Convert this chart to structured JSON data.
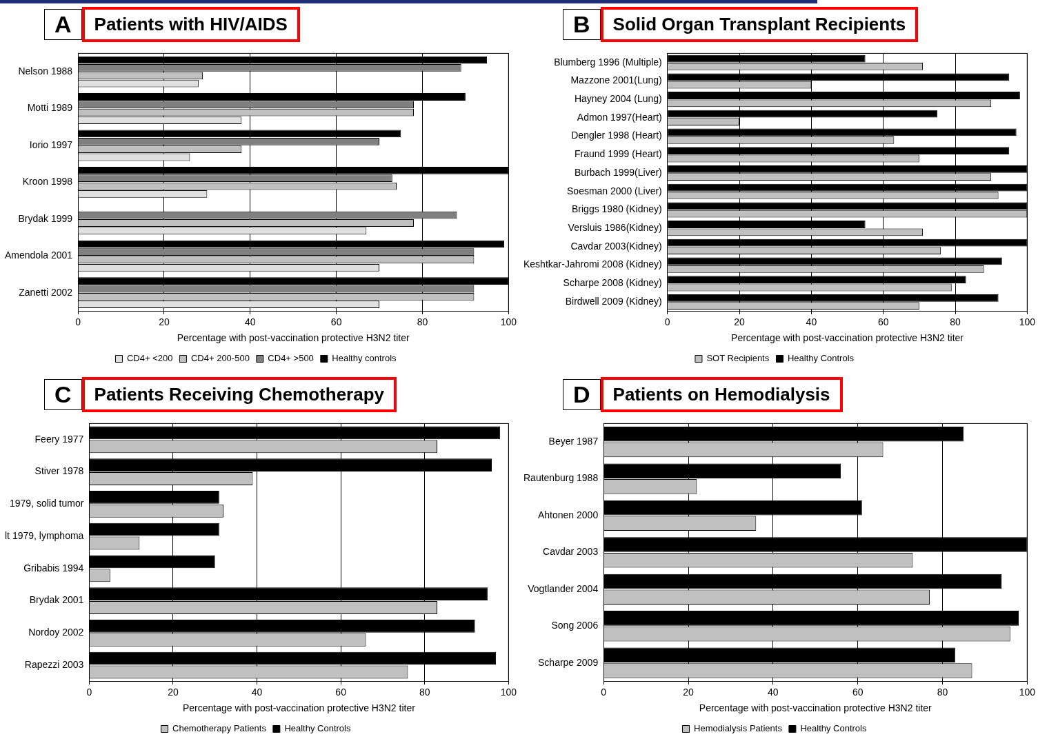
{
  "chart_data": [
    {
      "type": "bar",
      "orientation": "horizontal",
      "title": "Patients with HIV/AIDS",
      "annotations": [
        "A"
      ],
      "xlabel": "Percentage with post-vaccination protective H3N2 titer",
      "categories": [
        "Nelson 1988",
        "Motti 1989",
        "Iorio 1997",
        "Kroon 1998",
        "Brydak 1999",
        "Amendola 2001",
        "Zanetti 2002"
      ],
      "xlim": [
        0,
        100
      ],
      "xticks": [
        0,
        20,
        40,
        60,
        80,
        100
      ],
      "grid": "x",
      "legend": "bottom",
      "series": [
        {
          "name": "CD4+ <200",
          "color": "#e0e0e0",
          "values": [
            28,
            38,
            26,
            30,
            67,
            70,
            70
          ]
        },
        {
          "name": "CD4+ 200-500",
          "color": "#c0c0c0",
          "values": [
            29,
            78,
            38,
            74,
            78,
            92,
            92
          ]
        },
        {
          "name": "CD4+ >500",
          "color": "#808080",
          "values": [
            89,
            78,
            70,
            73,
            88,
            92,
            92
          ]
        },
        {
          "name": "Healthy controls",
          "color": "#000000",
          "values": [
            95,
            90,
            75,
            100,
            null,
            99,
            100
          ]
        }
      ]
    },
    {
      "type": "bar",
      "orientation": "horizontal",
      "title": "Solid Organ Transplant Recipients",
      "annotations": [
        "B"
      ],
      "xlabel": "Percentage with post-vaccination protective H3N2 titer",
      "categories": [
        "Blumberg 1996 (Multiple)",
        "Mazzone 2001(Lung)",
        "Hayney 2004 (Lung)",
        "Admon 1997(Heart)",
        "Dengler 1998 (Heart)",
        "Fraund 1999 (Heart)",
        "Burbach 1999(Liver)",
        "Soesman 2000 (Liver)",
        "Briggs 1980 (Kidney)",
        "Versluis 1986(Kidney)",
        "Cavdar 2003(Kidney)",
        "Keshtkar-Jahromi 2008 (Kidney)",
        "Scharpe 2008 (Kidney)",
        "Birdwell 2009 (Kidney)"
      ],
      "xlim": [
        0,
        100
      ],
      "xticks": [
        0,
        20,
        40,
        60,
        80,
        100
      ],
      "grid": "x",
      "legend": "bottom",
      "series": [
        {
          "name": "SOT Recipients",
          "color": "#c0c0c0",
          "values": [
            71,
            40,
            90,
            20,
            63,
            70,
            90,
            92,
            100,
            71,
            76,
            88,
            79,
            70
          ]
        },
        {
          "name": "Healthy Controls",
          "color": "#000000",
          "values": [
            55,
            95,
            98,
            75,
            97,
            95,
            100,
            100,
            100,
            55,
            100,
            93,
            83,
            92
          ]
        }
      ]
    },
    {
      "type": "bar",
      "orientation": "horizontal",
      "title": "Patients Receiving Chemotherapy",
      "annotations": [
        "C"
      ],
      "xlabel": "Percentage with post-vaccination protective H3N2 titer",
      "categories": [
        "Feery 1977",
        "Stiver 1978",
        "1979, solid tumor",
        "lt 1979, lymphoma",
        "Gribabis 1994",
        "Brydak 2001",
        "Nordoy 2002",
        "Rapezzi 2003"
      ],
      "xlim": [
        0,
        100
      ],
      "xticks": [
        0,
        20,
        40,
        60,
        80,
        100
      ],
      "grid": "x",
      "legend": "bottom",
      "series": [
        {
          "name": "Chemotherapy Patients",
          "color": "#c0c0c0",
          "values": [
            83,
            39,
            32,
            12,
            5,
            83,
            66,
            76
          ]
        },
        {
          "name": "Healthy Controls",
          "color": "#000000",
          "values": [
            98,
            96,
            31,
            31,
            30,
            95,
            92,
            97
          ]
        }
      ]
    },
    {
      "type": "bar",
      "orientation": "horizontal",
      "title": "Patients on Hemodialysis",
      "annotations": [
        "D"
      ],
      "xlabel": "Percentage with post-vaccination protective H3N2 titer",
      "categories": [
        "Beyer 1987",
        "Rautenburg 1988",
        "Ahtonen 2000",
        "Cavdar 2003",
        "Vogtlander 2004",
        "Song 2006",
        "Scharpe 2009"
      ],
      "xlim": [
        0,
        100
      ],
      "xticks": [
        0,
        20,
        40,
        60,
        80,
        100
      ],
      "grid": "x",
      "legend": "bottom",
      "series": [
        {
          "name": "Hemodialysis Patients",
          "color": "#c0c0c0",
          "values": [
            66,
            22,
            36,
            73,
            77,
            96,
            87
          ]
        },
        {
          "name": "Healthy Controls",
          "color": "#000000",
          "values": [
            85,
            56,
            61,
            100,
            94,
            98,
            83
          ]
        }
      ]
    }
  ]
}
